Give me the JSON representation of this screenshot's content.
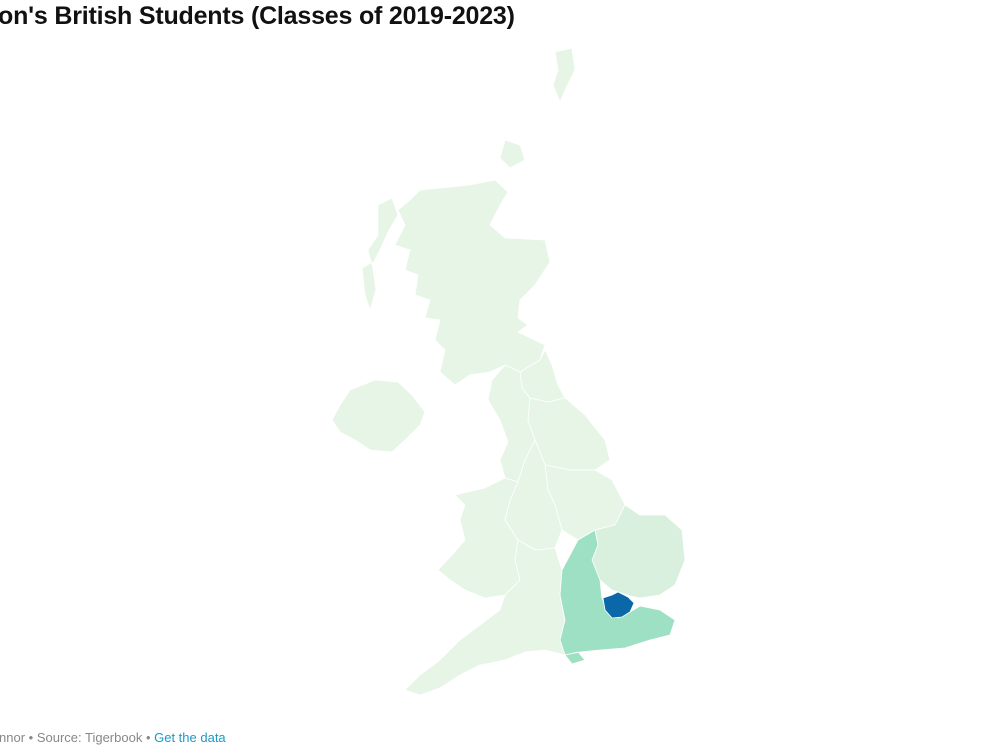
{
  "title": "on's British Students (Classes of 2019-2023)",
  "footer": {
    "credit": "nnor",
    "separator": " • ",
    "source": "Source: Tigerbook",
    "get_data_link": "Get the data"
  },
  "colors": {
    "lowest": "#e6f5e6",
    "low": "#d8f0dd",
    "mid": "#9ee0c3",
    "highest": "#0a67a8",
    "link": "#1d9ac7"
  },
  "map": {
    "regions": [
      {
        "name": "Scotland",
        "level": "lowest"
      },
      {
        "name": "Northern Ireland",
        "level": "lowest"
      },
      {
        "name": "North East",
        "level": "lowest"
      },
      {
        "name": "North West",
        "level": "lowest"
      },
      {
        "name": "Yorkshire and the Humber",
        "level": "lowest"
      },
      {
        "name": "East Midlands",
        "level": "lowest"
      },
      {
        "name": "West Midlands",
        "level": "lowest"
      },
      {
        "name": "Wales",
        "level": "lowest"
      },
      {
        "name": "South West",
        "level": "lowest"
      },
      {
        "name": "East of England",
        "level": "low"
      },
      {
        "name": "South East",
        "level": "mid"
      },
      {
        "name": "London",
        "level": "highest"
      }
    ]
  }
}
